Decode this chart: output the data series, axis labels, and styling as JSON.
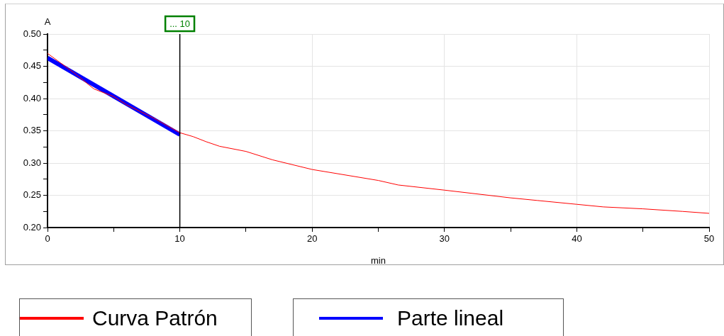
{
  "chart_data": {
    "type": "line",
    "xlabel": "min",
    "ylabel": "A",
    "xlim": [
      0,
      50
    ],
    "ylim": [
      0.2,
      0.5
    ],
    "xticks": [
      0,
      {
        "value": 5,
        "label": null
      },
      10,
      {
        "value": 15,
        "label": null
      },
      20,
      {
        "value": 25,
        "label": null
      },
      30,
      {
        "value": 35,
        "label": null
      },
      40,
      {
        "value": 45,
        "label": null
      },
      50
    ],
    "yticks": [
      {
        "value": 0.2,
        "label": "0.20"
      },
      {
        "value": 0.225,
        "label": null
      },
      {
        "value": 0.25,
        "label": "0.25"
      },
      {
        "value": 0.275,
        "label": null
      },
      {
        "value": 0.3,
        "label": "0.30"
      },
      {
        "value": 0.325,
        "label": null
      },
      {
        "value": 0.35,
        "label": "0.35"
      },
      {
        "value": 0.375,
        "label": null
      },
      {
        "value": 0.4,
        "label": "0.40"
      },
      {
        "value": 0.425,
        "label": null
      },
      {
        "value": 0.45,
        "label": "0.45"
      },
      {
        "value": 0.475,
        "label": null
      },
      {
        "value": 0.5,
        "label": "0.50"
      }
    ],
    "grid": true,
    "legend": "bottom",
    "marker": "none",
    "line_style": "solid",
    "ref_lines": [
      {
        "axis": "x",
        "value": 10,
        "label": "... 10",
        "color": "#000000"
      }
    ],
    "series": [
      {
        "name": "Curva Patrón",
        "color": "#ff0000",
        "x": [
          0,
          1,
          2,
          3.5,
          5,
          6,
          8,
          10,
          11,
          12,
          13,
          15,
          17,
          20,
          25,
          26.5,
          30,
          35,
          37,
          40,
          42,
          45,
          48,
          50
        ],
        "values": [
          0.47,
          0.455,
          0.44,
          0.415,
          0.403,
          0.39,
          0.37,
          0.347,
          0.341,
          0.333,
          0.326,
          0.318,
          0.305,
          0.29,
          0.273,
          0.266,
          0.258,
          0.246,
          0.242,
          0.236,
          0.232,
          0.229,
          0.225,
          0.222
        ]
      },
      {
        "name": "Parte lineal",
        "color": "#0000ff",
        "x": [
          0,
          10
        ],
        "values": [
          0.463,
          0.344
        ]
      }
    ]
  }
}
